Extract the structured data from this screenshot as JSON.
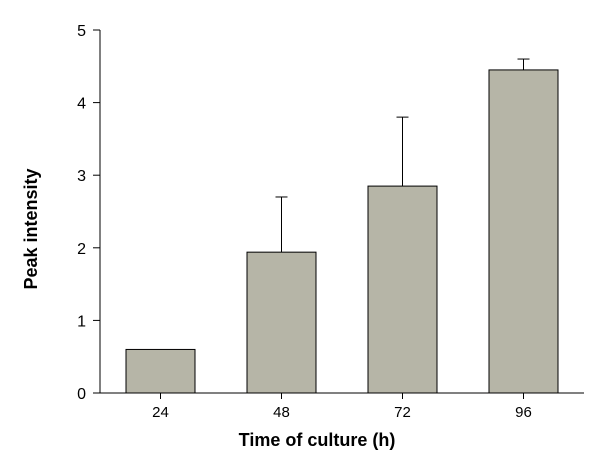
{
  "chart_data": {
    "type": "bar",
    "categories": [
      "24",
      "48",
      "72",
      "96"
    ],
    "values": [
      0.6,
      1.94,
      2.85,
      4.45
    ],
    "error_plus": [
      0,
      0.76,
      0.95,
      0.15
    ],
    "xlabel": "Time of culture (h)",
    "ylabel": "Peak intensity",
    "ylim": [
      0,
      5
    ],
    "yticks": [
      "0",
      "1",
      "2",
      "3",
      "4",
      "5"
    ],
    "bar_color": "#b6b5a7",
    "grid": false,
    "legend": "none"
  }
}
